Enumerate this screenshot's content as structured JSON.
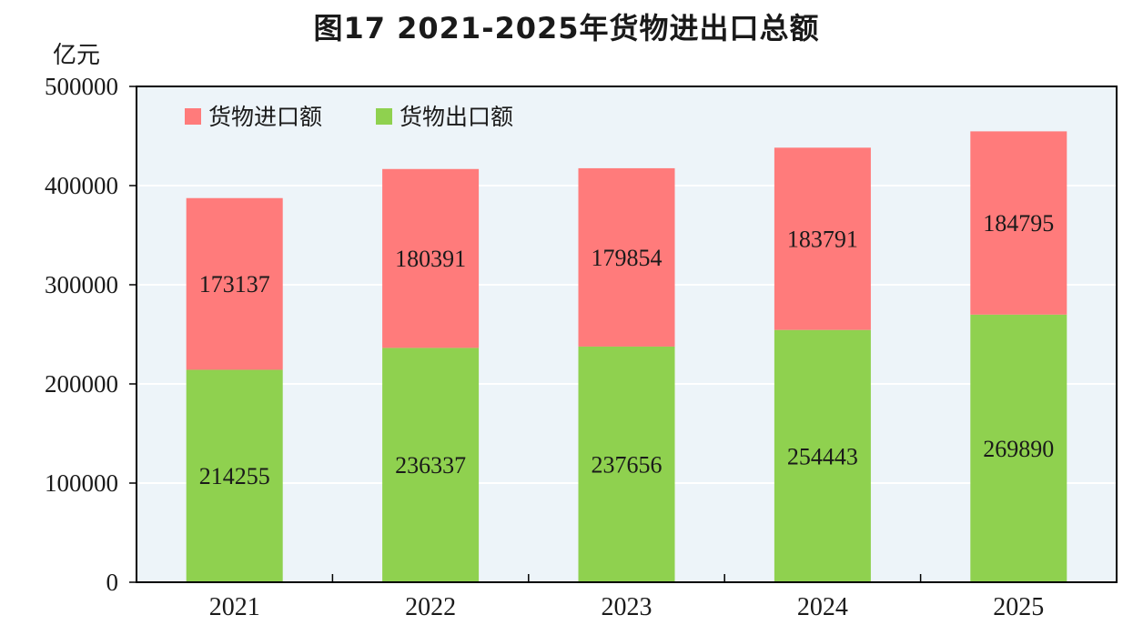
{
  "chart_data": {
    "type": "bar",
    "stacked": true,
    "title": "图17    2021-2025年货物进出口总额",
    "unit_label": "亿元",
    "categories": [
      "2021",
      "2022",
      "2023",
      "2024",
      "2025"
    ],
    "series": [
      {
        "name": "货物出口额",
        "values": [
          214255,
          236337,
          237656,
          254443,
          269890
        ],
        "color": "#8fd14f"
      },
      {
        "name": "货物进口额",
        "values": [
          173137,
          180391,
          179854,
          183791,
          184795
        ],
        "color": "#ff7b7b"
      }
    ],
    "ylim": [
      0,
      500000
    ],
    "yticks": [
      "0",
      "100000",
      "200000",
      "300000",
      "400000",
      "500000"
    ],
    "grid": true,
    "legend_position": "top-left",
    "legend_order": [
      "货物进口额",
      "货物出口额"
    ],
    "plot_background": "#edf4f9"
  }
}
